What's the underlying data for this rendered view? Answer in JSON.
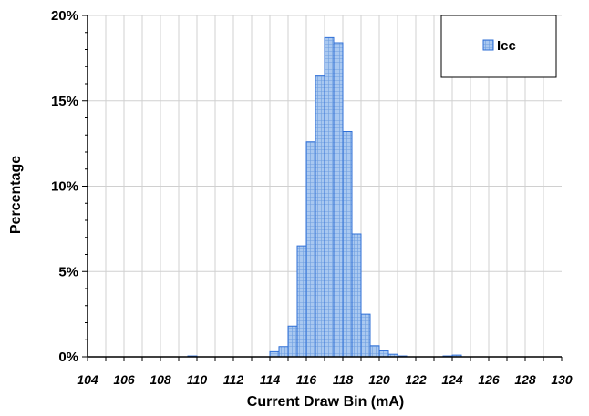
{
  "chart_data": {
    "type": "bar",
    "xlabel": "Current Draw Bin (mA)",
    "ylabel": "Percentage",
    "ylim": [
      0,
      20
    ],
    "xlim": [
      104,
      130
    ],
    "y_ticks": [
      "0%",
      "5%",
      "10%",
      "15%",
      "20%"
    ],
    "x_ticks": [
      "104",
      "106",
      "108",
      "110",
      "112",
      "114",
      "116",
      "118",
      "120",
      "122",
      "124",
      "126",
      "128",
      "130"
    ],
    "grid": true,
    "legend_position": "top-right",
    "bin_width": 0.5,
    "series": [
      {
        "name": "Icc",
        "color": "#a9c8f0",
        "edge_color": "#2f6fd6",
        "x": [
          109.5,
          114.0,
          114.5,
          115.0,
          115.5,
          116.0,
          116.5,
          117.0,
          117.5,
          118.0,
          118.5,
          119.0,
          119.5,
          120.0,
          120.5,
          121.0,
          123.5,
          124.0
        ],
        "values": [
          0.05,
          0.3,
          0.6,
          1.8,
          6.5,
          12.6,
          16.5,
          18.7,
          18.4,
          13.2,
          7.2,
          2.5,
          0.65,
          0.35,
          0.15,
          0.05,
          0.05,
          0.1
        ]
      }
    ]
  }
}
